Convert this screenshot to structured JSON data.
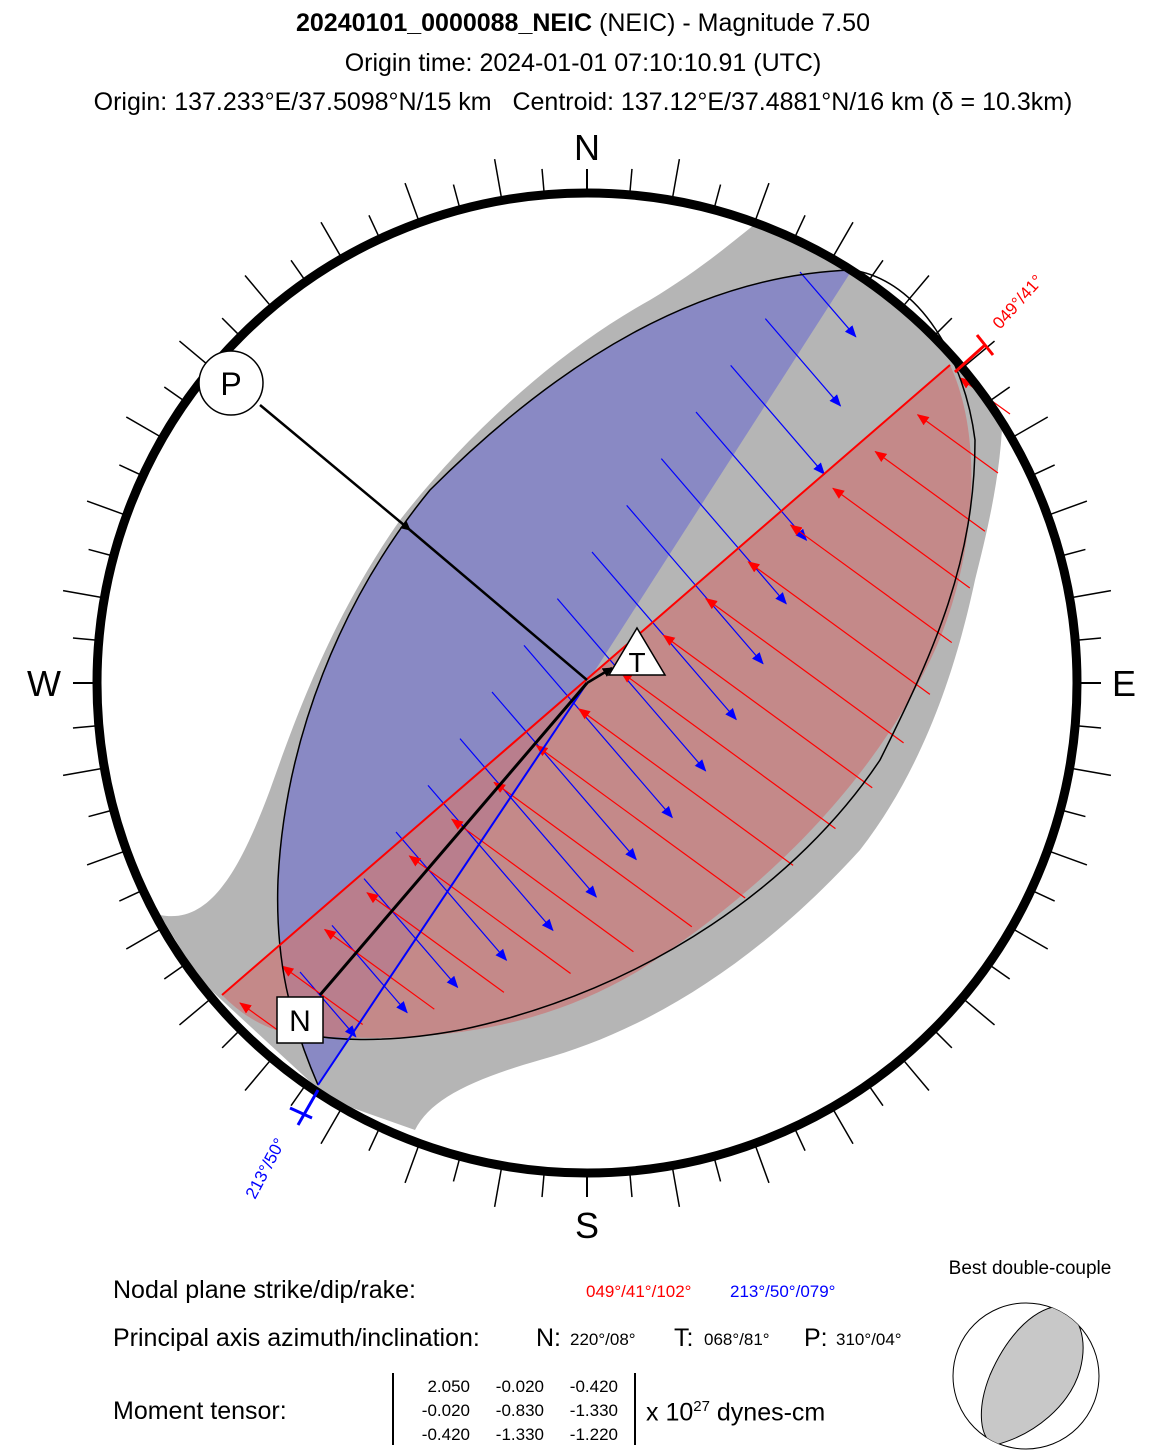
{
  "header": {
    "event_id": "20240101_0000088_NEIC",
    "title_rest": " (NEIC) - Magnitude 7.50",
    "origin_time": "Origin time: 2024-01-01 07:10:10.91 (UTC)",
    "origin_line": "Origin: 137.233°E/37.5098°N/15 km   Centroid: 137.12°E/37.4881°N/16 km (δ = 10.3km)"
  },
  "compass": {
    "north": "N",
    "south": "S",
    "east": "E",
    "west": "W"
  },
  "axes": {
    "p_label": "P",
    "t_label": "T",
    "n_label": "N"
  },
  "plane_labels": {
    "plane1": "049°/41°",
    "plane2": "213°/50°"
  },
  "info": {
    "nodal_label": "Nodal plane strike/dip/rake:",
    "nodal_plane1": "049°/41°/102°",
    "nodal_plane2": "213°/50°/079°",
    "principal_label": "Principal axis azimuth/inclination:",
    "n_axis_label": "N:",
    "n_axis_value": "220°/08°",
    "t_axis_label": "T:",
    "t_axis_value": "068°/81°",
    "p_axis_label": "P:",
    "p_axis_value": "310°/04°",
    "moment_label": "Moment tensor:",
    "tensor": [
      [
        "2.050",
        "-0.020",
        "-0.420"
      ],
      [
        "-0.020",
        "-0.830",
        "-1.330"
      ],
      [
        "-0.420",
        "-1.330",
        "-1.220"
      ]
    ],
    "units_prefix": "x 10",
    "units_exp": "27",
    "units_suffix": " dynes-cm",
    "dc_title": "Best double-couple"
  },
  "colors": {
    "compression": "#b5b5b5",
    "plane1": "#ff0000",
    "plane2": "#0000ff",
    "blue_fill": "#7b7bc9",
    "red_fill": "#c97b7b"
  }
}
